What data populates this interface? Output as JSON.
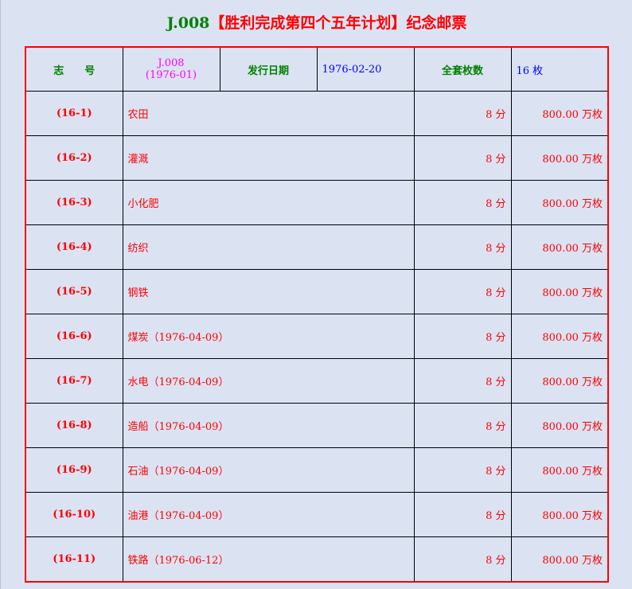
{
  "title": {
    "code": "J.008",
    "name": "【胜利完成第四个五年计划】纪念邮票"
  },
  "header": {
    "number_label": "志　　号",
    "number_code": "J.008",
    "number_year": "(1976-01)",
    "date_label": "发行日期",
    "date_value": "1976-02-20",
    "count_label": "全套枚数",
    "count_value": "16 枚"
  },
  "stamps": [
    {
      "no": "(16-1)",
      "name": "农田",
      "price": "8 分",
      "qty": "800.00 万枚"
    },
    {
      "no": "(16-2)",
      "name": "灌溉",
      "price": "8 分",
      "qty": "800.00 万枚"
    },
    {
      "no": "(16-3)",
      "name": "小化肥",
      "price": "8 分",
      "qty": "800.00 万枚"
    },
    {
      "no": "(16-4)",
      "name": "纺织",
      "price": "8 分",
      "qty": "800.00 万枚"
    },
    {
      "no": "(16-5)",
      "name": "钢铁",
      "price": "8 分",
      "qty": "800.00 万枚"
    },
    {
      "no": "(16-6)",
      "name": "煤炭（1976-04-09）",
      "price": "8 分",
      "qty": "800.00 万枚"
    },
    {
      "no": "(16-7)",
      "name": "水电（1976-04-09）",
      "price": "8 分",
      "qty": "800.00 万枚"
    },
    {
      "no": "(16-8)",
      "name": "造船（1976-04-09）",
      "price": "8 分",
      "qty": "800.00 万枚"
    },
    {
      "no": "(16-9)",
      "name": "石油（1976-04-09）",
      "price": "8 分",
      "qty": "800.00 万枚"
    },
    {
      "no": "(16-10)",
      "name": "油港（1976-04-09）",
      "price": "8 分",
      "qty": "800.00 万枚"
    },
    {
      "no": "(16-11)",
      "name": "铁路（1976-06-12）",
      "price": "8 分",
      "qty": "800.00 万枚"
    }
  ],
  "colors": {
    "background": "#dbe3f3",
    "border": "#ff0000",
    "label": "#008000",
    "value": "#0000ff",
    "code": "#ff00ff",
    "stamp_text": "#ff0000"
  }
}
